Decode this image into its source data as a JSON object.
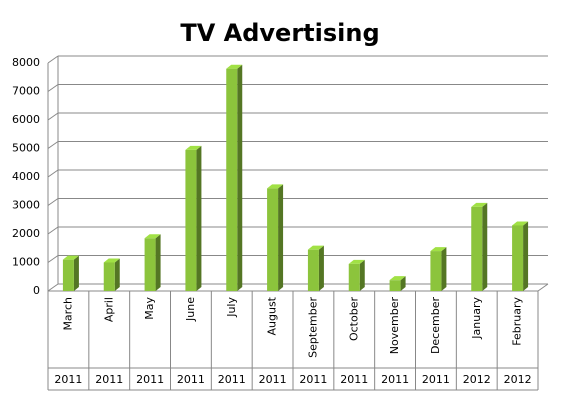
{
  "chart_data": {
    "type": "bar3d",
    "title": "TV Advertising",
    "categories": [
      "March",
      "April",
      "May",
      "June",
      "July",
      "August",
      "September",
      "October",
      "November",
      "December",
      "January",
      "February"
    ],
    "years": [
      "2011",
      "2011",
      "2011",
      "2011",
      "2011",
      "2011",
      "2011",
      "2011",
      "2011",
      "2011",
      "2012",
      "2012"
    ],
    "values": [
      1100,
      1000,
      1850,
      4950,
      7800,
      3600,
      1450,
      950,
      380,
      1400,
      2950,
      2300
    ],
    "color": "#8cc43c",
    "ylim": [
      0,
      8000
    ],
    "yticks": [
      0,
      1000,
      2000,
      3000,
      4000,
      5000,
      6000,
      7000,
      8000
    ],
    "grid": true
  }
}
